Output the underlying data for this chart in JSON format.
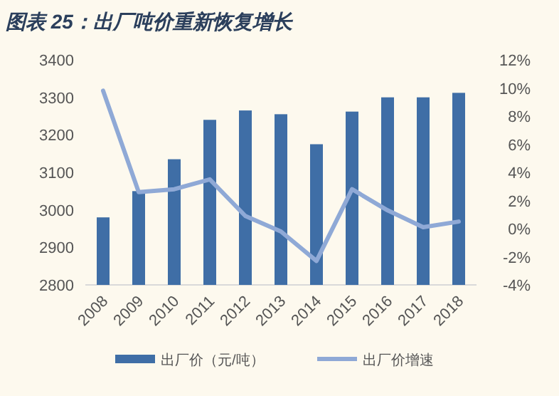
{
  "chart_data": {
    "type": "bar",
    "title": "图表 25：出厂吨价重新恢复增长",
    "categories": [
      "2008",
      "2009",
      "2010",
      "2011",
      "2012",
      "2013",
      "2014",
      "2015",
      "2016",
      "2017",
      "2018"
    ],
    "series": [
      {
        "name": "出厂价（元/吨）",
        "color": "#3f6ea6",
        "values": [
          2980,
          3050,
          3135,
          3240,
          3265,
          3255,
          3175,
          3262,
          3300,
          3300,
          3312
        ]
      },
      {
        "name": "出厂价增速",
        "type": "line",
        "axis": "y2",
        "color": "#8fa9d6",
        "values": [
          9.8,
          2.6,
          2.8,
          3.5,
          0.9,
          -0.2,
          -2.3,
          2.8,
          1.3,
          0.1,
          0.5
        ]
      }
    ],
    "ylim": [
      2800,
      3400
    ],
    "yticks": [
      2800,
      2900,
      3000,
      3100,
      3200,
      3300,
      3400
    ],
    "y2lim": [
      -4,
      12
    ],
    "y2ticks": [
      {
        "value": -4,
        "label": "-4%"
      },
      {
        "value": -2,
        "label": "-2%"
      },
      {
        "value": 0,
        "label": "0%"
      },
      {
        "value": 2,
        "label": "2%"
      },
      {
        "value": 4,
        "label": "4%"
      },
      {
        "value": 6,
        "label": "6%"
      },
      {
        "value": 8,
        "label": "8%"
      },
      {
        "value": 10,
        "label": "10%"
      },
      {
        "value": 12,
        "label": "12%"
      }
    ],
    "grid": false,
    "legend": "bottom"
  }
}
